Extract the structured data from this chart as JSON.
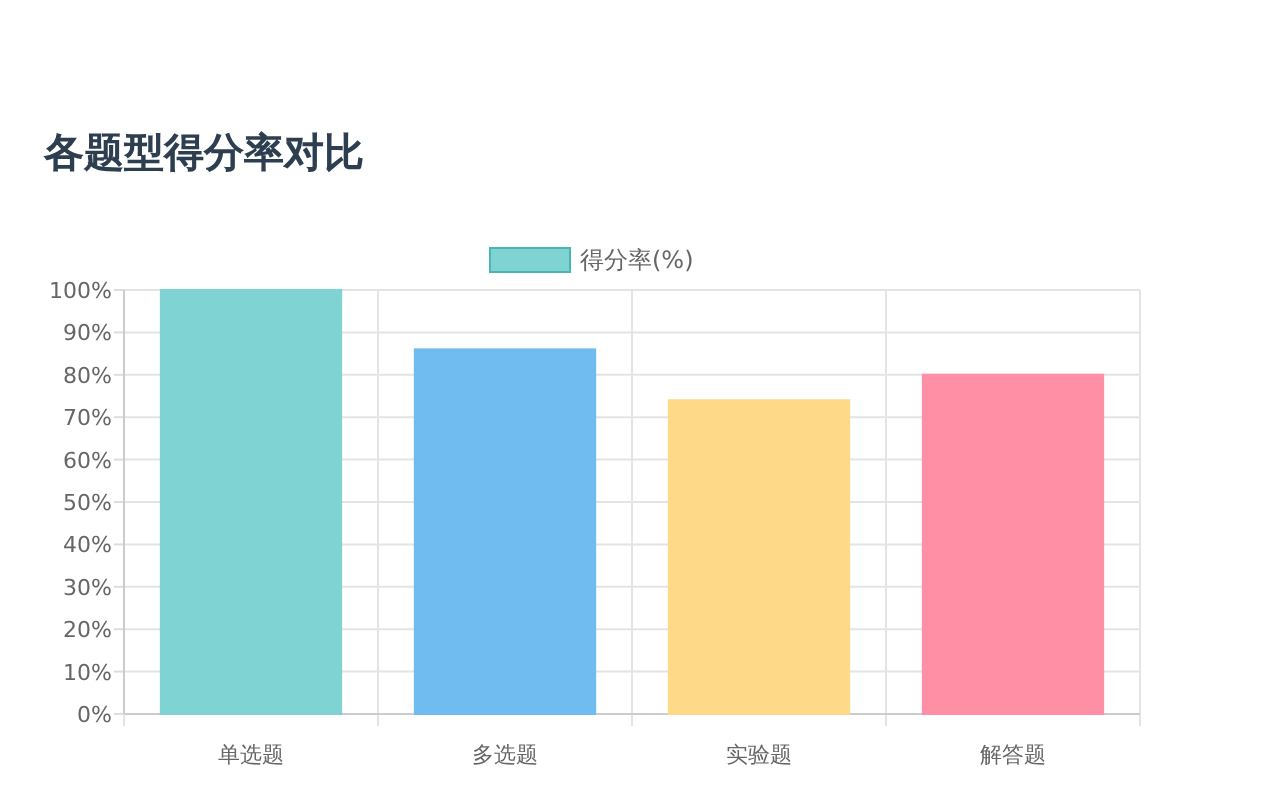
{
  "chart_data": {
    "type": "bar",
    "title": "各题型得分率对比",
    "categories": [
      "单选题",
      "多选题",
      "实验题",
      "解答题"
    ],
    "series": [
      {
        "name": "得分率(%)",
        "color": "#80d3d3",
        "colors": [
          "#80d3d3",
          "#70bbef",
          "#fed987",
          "#fe8fa5"
        ],
        "values": [
          100,
          86,
          74,
          80
        ]
      }
    ],
    "ylim": [
      0,
      100
    ],
    "yticks": [
      {
        "value": 0,
        "label": "0%"
      },
      {
        "value": 10,
        "label": "10%"
      },
      {
        "value": 20,
        "label": "20%"
      },
      {
        "value": 30,
        "label": "30%"
      },
      {
        "value": 40,
        "label": "40%"
      },
      {
        "value": 50,
        "label": "50%"
      },
      {
        "value": 60,
        "label": "60%"
      },
      {
        "value": 70,
        "label": "70%"
      },
      {
        "value": 80,
        "label": "80%"
      },
      {
        "value": 90,
        "label": "90%"
      },
      {
        "value": 100,
        "label": "100%"
      }
    ],
    "grid": true,
    "legend": "top"
  }
}
